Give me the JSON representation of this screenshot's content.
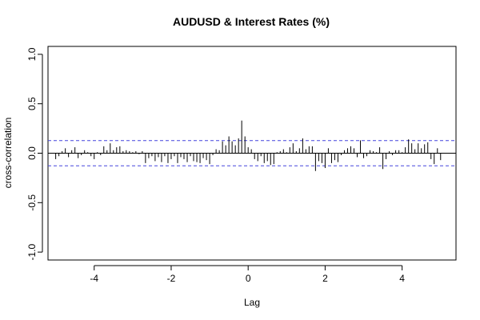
{
  "chart_data": {
    "type": "bar",
    "title": "AUDUSD & Interest Rates (%)",
    "xlabel": "Lag",
    "ylabel": "cross-correlation",
    "xlim": [
      -5.2,
      5.4
    ],
    "ylim": [
      -1.08,
      1.08
    ],
    "xticks": [
      -4,
      -2,
      0,
      2,
      4
    ],
    "xtick_labels": [
      "-4",
      "-2",
      "0",
      "2",
      "4"
    ],
    "yticks": [
      -1.0,
      -0.5,
      0.0,
      0.5,
      1.0
    ],
    "ytick_labels": [
      "-1.0",
      "-0.5",
      "0.0",
      "0.5",
      "1.0"
    ],
    "confidence_bound": 0.127,
    "confidence_color": "#4444dd",
    "series": [
      {
        "x": [
          -5.0,
          -4.917,
          -4.833,
          -4.75,
          -4.667,
          -4.583,
          -4.5,
          -4.417,
          -4.333,
          -4.25,
          -4.167,
          -4.083,
          -4.0,
          -3.917,
          -3.833,
          -3.75,
          -3.667,
          -3.583,
          -3.5,
          -3.417,
          -3.333,
          -3.25,
          -3.167,
          -3.083,
          -3.0,
          -2.917,
          -2.833,
          -2.75,
          -2.667,
          -2.583,
          -2.5,
          -2.417,
          -2.333,
          -2.25,
          -2.167,
          -2.083,
          -2.0,
          -1.917,
          -1.833,
          -1.75,
          -1.667,
          -1.583,
          -1.5,
          -1.417,
          -1.333,
          -1.25,
          -1.167,
          -1.083,
          -1.0,
          -0.917,
          -0.833,
          -0.75,
          -0.667,
          -0.583,
          -0.5,
          -0.417,
          -0.333,
          -0.25,
          -0.167,
          -0.083,
          0.0,
          0.083,
          0.167,
          0.25,
          0.333,
          0.417,
          0.5,
          0.583,
          0.667,
          0.75,
          0.833,
          0.917,
          1.0,
          1.083,
          1.167,
          1.25,
          1.333,
          1.417,
          1.5,
          1.583,
          1.667,
          1.75,
          1.833,
          1.917,
          2.0,
          2.083,
          2.167,
          2.25,
          2.333,
          2.417,
          2.5,
          2.583,
          2.667,
          2.75,
          2.833,
          2.917,
          3.0,
          3.083,
          3.167,
          3.25,
          3.333,
          3.417,
          3.5,
          3.583,
          3.667,
          3.75,
          3.833,
          3.917,
          4.0,
          4.083,
          4.167,
          4.25,
          4.333,
          4.417,
          4.5,
          4.583,
          4.667,
          4.75,
          4.833,
          4.917,
          5.0
        ],
        "values": [
          -0.06,
          -0.03,
          0.02,
          0.05,
          -0.04,
          0.03,
          0.06,
          -0.05,
          -0.02,
          0.03,
          0.01,
          -0.03,
          -0.06,
          0.01,
          -0.02,
          0.07,
          0.03,
          0.1,
          0.03,
          0.06,
          0.07,
          0.02,
          0.03,
          0.02,
          0.01,
          0.02,
          -0.01,
          0.02,
          -0.1,
          -0.05,
          -0.03,
          -0.08,
          -0.04,
          -0.09,
          -0.03,
          -0.1,
          -0.06,
          -0.03,
          -0.1,
          -0.04,
          -0.06,
          -0.09,
          -0.03,
          -0.08,
          -0.09,
          -0.1,
          -0.05,
          -0.07,
          -0.11,
          -0.02,
          0.04,
          0.03,
          0.12,
          0.08,
          0.17,
          0.12,
          0.08,
          0.15,
          0.33,
          0.17,
          0.06,
          0.04,
          -0.06,
          -0.08,
          -0.03,
          -0.1,
          -0.08,
          -0.12,
          -0.11,
          0.01,
          0.02,
          0.04,
          0.01,
          0.06,
          0.1,
          0.02,
          0.05,
          0.15,
          0.04,
          0.07,
          0.07,
          -0.18,
          -0.08,
          -0.1,
          -0.15,
          0.05,
          -0.1,
          -0.07,
          -0.09,
          -0.02,
          0.03,
          0.05,
          0.07,
          0.05,
          -0.04,
          0.13,
          -0.05,
          -0.03,
          0.03,
          0.02,
          0.01,
          0.06,
          -0.16,
          -0.06,
          0.02,
          -0.02,
          0.03,
          0.03,
          0.01,
          0.06,
          0.14,
          0.1,
          0.04,
          0.1,
          0.05,
          0.09,
          0.11,
          -0.06,
          -0.11,
          0.05,
          -0.07
        ]
      }
    ]
  }
}
